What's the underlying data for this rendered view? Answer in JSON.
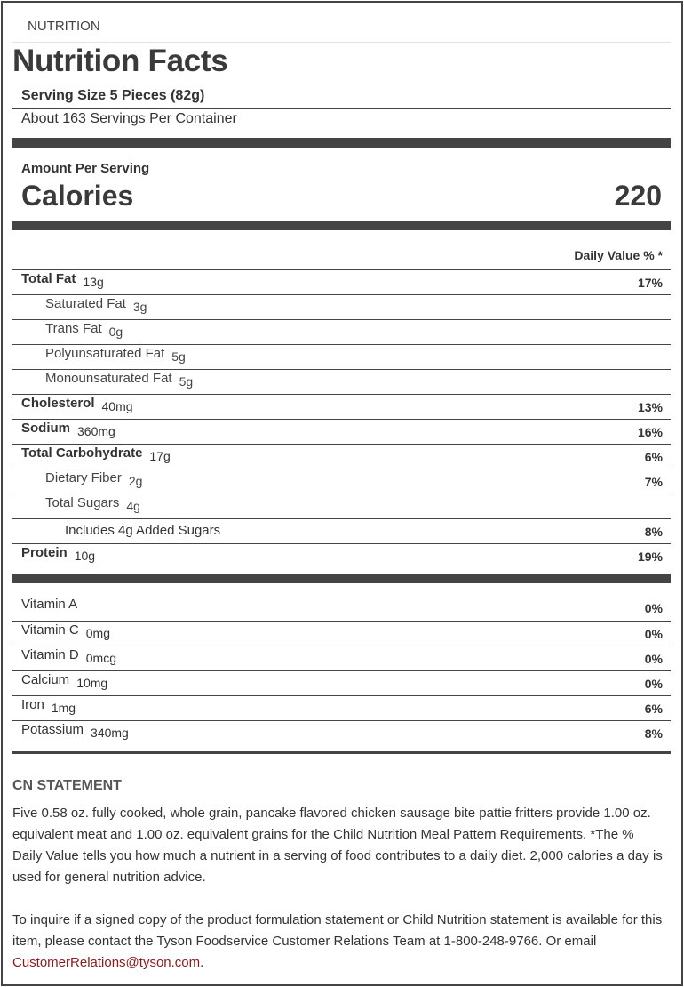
{
  "section_label": "NUTRITION",
  "title": "Nutrition Facts",
  "serving_size": "Serving Size 5 Pieces (82g)",
  "servings_per_container": "About 163 Servings Per Container",
  "amount_per_serving": "Amount Per Serving",
  "calories_label": "Calories",
  "calories_value": "220",
  "daily_value_header": "Daily Value % *",
  "nutrients": [
    {
      "name": "Total Fat",
      "amount": "13g",
      "dv": "17%",
      "level": 0
    },
    {
      "name": "Saturated Fat",
      "amount": "3g",
      "dv": "",
      "level": 1
    },
    {
      "name": "Trans Fat",
      "amount": "0g",
      "dv": "",
      "level": 1
    },
    {
      "name": "Polyunsaturated Fat",
      "amount": "5g",
      "dv": "",
      "level": 1
    },
    {
      "name": "Monounsaturated Fat",
      "amount": "5g",
      "dv": "",
      "level": 1
    },
    {
      "name": "Cholesterol",
      "amount": "40mg",
      "dv": "13%",
      "level": 0
    },
    {
      "name": "Sodium",
      "amount": "360mg",
      "dv": "16%",
      "level": 0
    },
    {
      "name": "Total Carbohydrate",
      "amount": "17g",
      "dv": "6%",
      "level": 0
    },
    {
      "name": "Dietary Fiber",
      "amount": "2g",
      "dv": "7%",
      "level": 1
    },
    {
      "name": "Total Sugars",
      "amount": "4g",
      "dv": "",
      "level": 1
    },
    {
      "name": "Includes 4g Added Sugars",
      "amount": "",
      "dv": "8%",
      "level": 2
    },
    {
      "name": "Protein",
      "amount": "10g",
      "dv": "19%",
      "level": 0
    }
  ],
  "vitamins": [
    {
      "name": "Vitamin A",
      "amount": "",
      "dv": "0%"
    },
    {
      "name": "Vitamin C",
      "amount": "0mg",
      "dv": "0%"
    },
    {
      "name": "Vitamin D",
      "amount": "0mcg",
      "dv": "0%"
    },
    {
      "name": "Calcium",
      "amount": "10mg",
      "dv": "0%"
    },
    {
      "name": "Iron",
      "amount": "1mg",
      "dv": "6%"
    },
    {
      "name": "Potassium",
      "amount": "340mg",
      "dv": "8%"
    }
  ],
  "cn_heading": "CN STATEMENT",
  "cn_text": "Five 0.58 oz. fully cooked, whole grain, pancake flavored chicken sausage bite pattie fritters provide 1.00 oz. equivalent meat and 1.00 oz. equivalent grains for the Child Nutrition Meal Pattern Requirements.",
  "dv_footnote": "*The % Daily Value tells you how much a nutrient in a serving of food contributes to a daily diet. 2,000 calories a day is used for general nutrition advice.",
  "inquiry_text": "To inquire if a signed copy of the product formulation statement or Child Nutrition statement is available for this item, please contact the Tyson Foodservice Customer Relations Team at 1-800-248-9766. Or email ",
  "email": "CustomerRelations@tyson.com",
  "inquiry_end": ".",
  "colors": {
    "text": "#333333",
    "bars": "#444444",
    "link": "#8b1a1a"
  }
}
